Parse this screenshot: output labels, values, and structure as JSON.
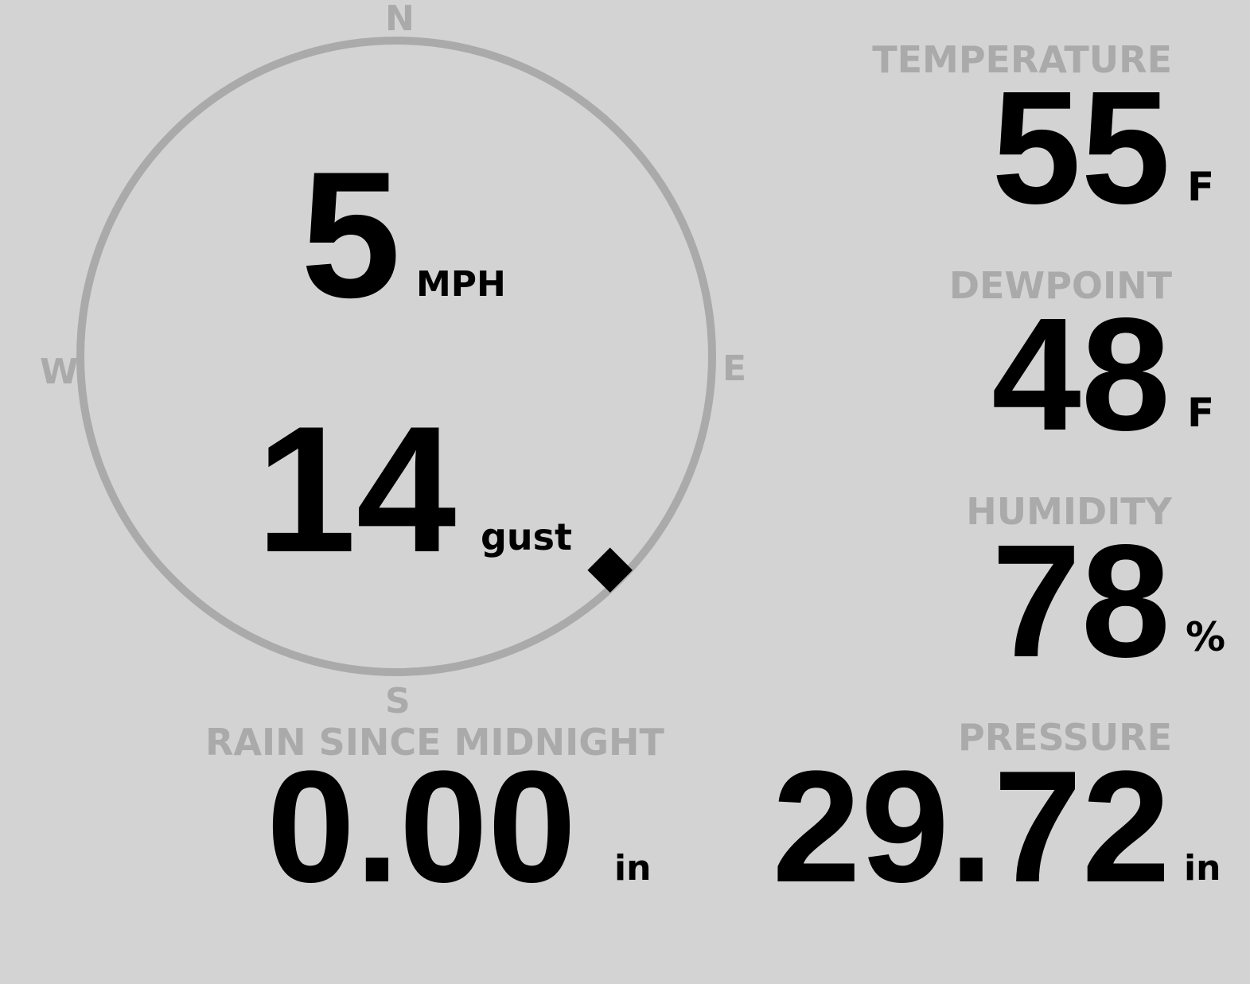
{
  "wind": {
    "speed": "5",
    "speed_unit": "MPH",
    "gust": "14",
    "gust_label": "gust",
    "direction_deg": 135,
    "compass": {
      "n": "N",
      "e": "E",
      "s": "S",
      "w": "W"
    }
  },
  "temperature": {
    "label": "TEMPERATURE",
    "value": "55",
    "unit": "F"
  },
  "dewpoint": {
    "label": "DEWPOINT",
    "value": "48",
    "unit": "F"
  },
  "humidity": {
    "label": "HUMIDITY",
    "value": "78",
    "unit": "%"
  },
  "rain": {
    "label": "RAIN SINCE MIDNIGHT",
    "value": "0.00",
    "unit": "in"
  },
  "pressure": {
    "label": "PRESSURE",
    "value": "29.72",
    "unit": "in"
  },
  "colors": {
    "background": "#d3d3d3",
    "label": "#aaaaaa",
    "value": "#000000"
  }
}
